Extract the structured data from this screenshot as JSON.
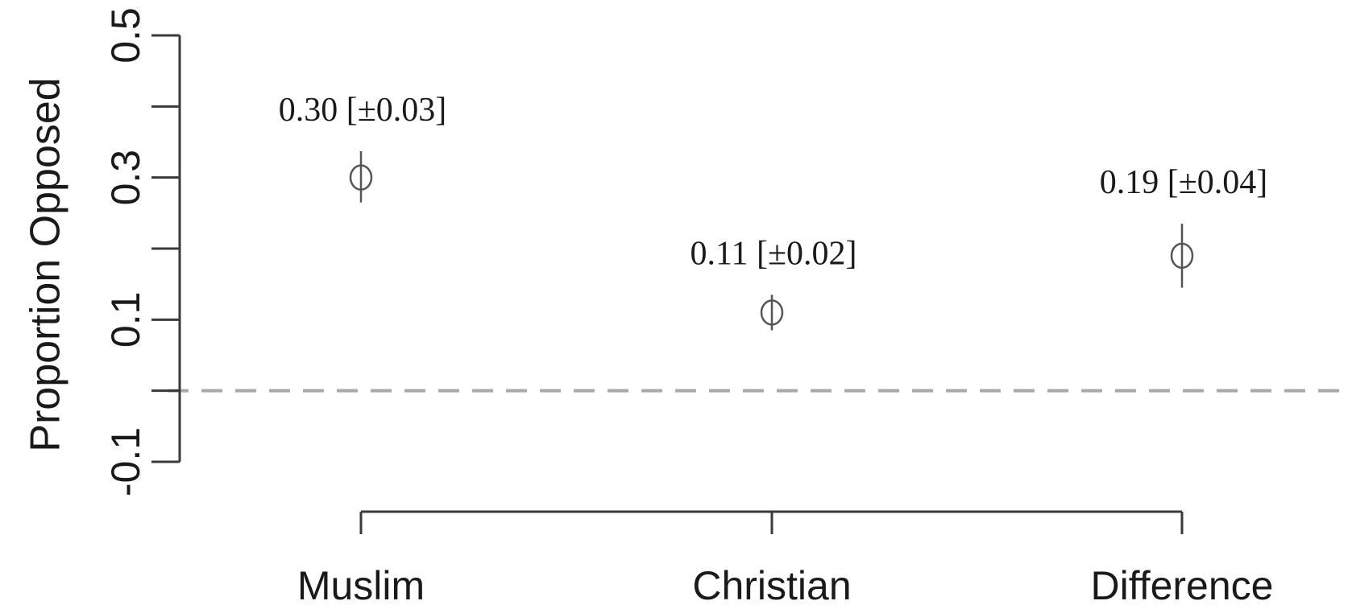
{
  "chart_data": {
    "type": "scatter",
    "title": "",
    "ylabel": "Proportion Opposed",
    "xlabel": "",
    "ylim": [
      -0.1,
      0.5
    ],
    "yticks": [
      -0.1,
      0.1,
      0.3,
      0.5
    ],
    "ytick_labels": [
      "-0.1",
      "0.1",
      "0.3",
      "0.5"
    ],
    "yticks_minor": [
      0.0,
      0.2,
      0.4
    ],
    "reference_line": {
      "y": 0,
      "style": "dashed",
      "color": "#a8a8a8"
    },
    "categories": [
      "Muslim",
      "Christian",
      "Difference"
    ],
    "points": [
      {
        "category": "Muslim",
        "value": 0.3,
        "lower": 0.265,
        "upper": 0.337,
        "label": "0.30 [±0.03]"
      },
      {
        "category": "Christian",
        "value": 0.11,
        "lower": 0.085,
        "upper": 0.135,
        "label": "0.11 [±0.02]"
      },
      {
        "category": "Difference",
        "value": 0.19,
        "lower": 0.145,
        "upper": 0.235,
        "label": "0.19 [±0.04]"
      }
    ],
    "grid": false,
    "legend": "none"
  }
}
